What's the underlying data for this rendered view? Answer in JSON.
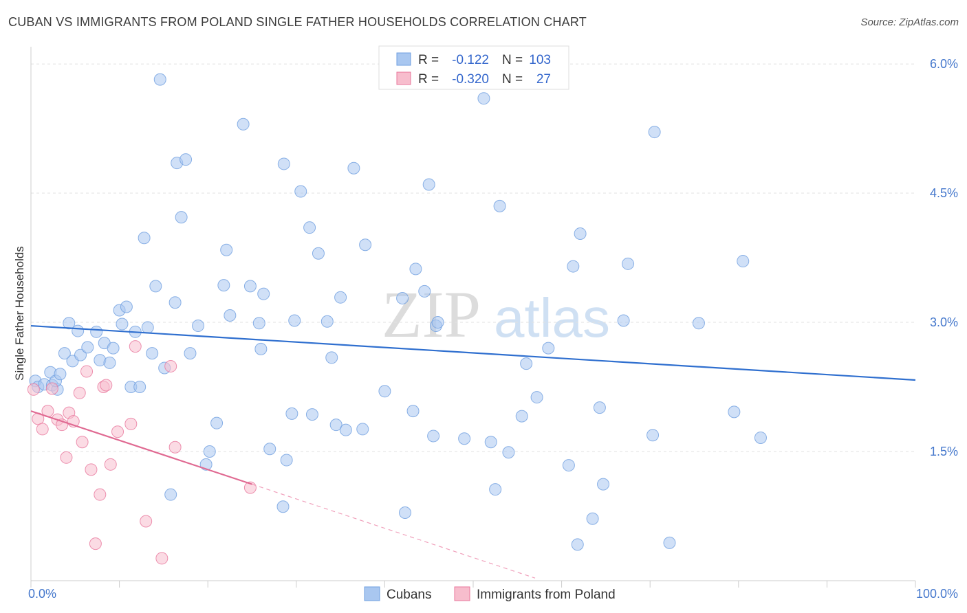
{
  "title": "CUBAN VS IMMIGRANTS FROM POLAND SINGLE FATHER HOUSEHOLDS CORRELATION CHART",
  "source": "Source: ZipAtlas.com",
  "watermark": {
    "zip": "ZIP",
    "atlas": "atlas"
  },
  "chart_data": {
    "type": "scatter",
    "ylabel": "Single Father Households",
    "xlim": [
      0,
      100
    ],
    "ylim": [
      0,
      6.2
    ],
    "x_tick_labels": [
      {
        "value": 0,
        "label": "0.0%"
      },
      {
        "value": 100,
        "label": "100.0%"
      }
    ],
    "y_ticks": [
      {
        "value": 1.5,
        "label": "1.5%"
      },
      {
        "value": 3.0,
        "label": "3.0%"
      },
      {
        "value": 4.5,
        "label": "4.5%"
      },
      {
        "value": 6.0,
        "label": "6.0%"
      }
    ],
    "grid": "horizontal dashed",
    "legend_top": [
      {
        "r_label": "R =",
        "r": "-0.122",
        "n_label": "N =",
        "n": "103",
        "color": "#6f9fe0"
      },
      {
        "r_label": "R =",
        "r": "-0.320",
        "n_label": "N =",
        "n": "27",
        "color": "#f09bb5"
      }
    ],
    "series": [
      {
        "name": "Cubans",
        "color": "#6f9fe0",
        "fill": "#a9c7f0",
        "trend": {
          "x0": 0,
          "y0": 2.96,
          "x1": 100,
          "y1": 2.33
        },
        "points": [
          [
            0.5,
            2.32
          ],
          [
            0.8,
            2.25
          ],
          [
            1.5,
            2.28
          ],
          [
            2.2,
            2.42
          ],
          [
            2.4,
            2.27
          ],
          [
            3.0,
            2.22
          ],
          [
            2.8,
            2.32
          ],
          [
            3.3,
            2.4
          ],
          [
            3.8,
            2.64
          ],
          [
            4.3,
            2.99
          ],
          [
            4.7,
            2.55
          ],
          [
            5.3,
            2.9
          ],
          [
            5.6,
            2.62
          ],
          [
            6.4,
            2.71
          ],
          [
            7.4,
            2.89
          ],
          [
            7.8,
            2.56
          ],
          [
            8.3,
            2.76
          ],
          [
            8.9,
            2.53
          ],
          [
            9.3,
            2.7
          ],
          [
            10.0,
            3.14
          ],
          [
            10.3,
            2.98
          ],
          [
            10.8,
            3.18
          ],
          [
            11.3,
            2.25
          ],
          [
            11.8,
            2.89
          ],
          [
            12.3,
            2.25
          ],
          [
            12.8,
            3.98
          ],
          [
            13.2,
            2.94
          ],
          [
            13.7,
            2.64
          ],
          [
            14.1,
            3.42
          ],
          [
            14.6,
            5.82
          ],
          [
            15.1,
            2.47
          ],
          [
            15.8,
            1.0
          ],
          [
            16.3,
            3.23
          ],
          [
            16.5,
            4.85
          ],
          [
            17.0,
            4.22
          ],
          [
            17.5,
            4.89
          ],
          [
            18.0,
            2.64
          ],
          [
            18.9,
            2.96
          ],
          [
            19.8,
            1.35
          ],
          [
            20.2,
            1.5
          ],
          [
            21.0,
            1.83
          ],
          [
            21.8,
            3.43
          ],
          [
            22.1,
            3.84
          ],
          [
            22.5,
            3.08
          ],
          [
            24.0,
            5.3
          ],
          [
            24.8,
            3.42
          ],
          [
            25.8,
            2.99
          ],
          [
            26.3,
            3.33
          ],
          [
            26.0,
            2.69
          ],
          [
            27.0,
            1.53
          ],
          [
            28.5,
            0.86
          ],
          [
            28.6,
            4.84
          ],
          [
            28.9,
            1.4
          ],
          [
            29.5,
            1.94
          ],
          [
            29.8,
            3.02
          ],
          [
            30.5,
            4.52
          ],
          [
            31.5,
            4.1
          ],
          [
            31.8,
            1.93
          ],
          [
            32.5,
            3.8
          ],
          [
            33.5,
            3.01
          ],
          [
            34.0,
            2.59
          ],
          [
            34.5,
            1.81
          ],
          [
            35.0,
            3.29
          ],
          [
            35.6,
            1.75
          ],
          [
            36.5,
            4.79
          ],
          [
            37.5,
            1.76
          ],
          [
            37.8,
            3.9
          ],
          [
            40.0,
            2.2
          ],
          [
            42.0,
            3.28
          ],
          [
            42.3,
            0.79
          ],
          [
            43.2,
            1.97
          ],
          [
            43.5,
            3.62
          ],
          [
            44.5,
            3.36
          ],
          [
            45.0,
            4.6
          ],
          [
            45.5,
            1.68
          ],
          [
            45.8,
            2.96
          ],
          [
            46.0,
            3.0
          ],
          [
            49.0,
            1.65
          ],
          [
            51.2,
            5.6
          ],
          [
            52.0,
            1.61
          ],
          [
            52.5,
            1.06
          ],
          [
            53.0,
            4.35
          ],
          [
            54.0,
            1.49
          ],
          [
            55.5,
            1.91
          ],
          [
            56.0,
            2.52
          ],
          [
            57.2,
            2.13
          ],
          [
            58.5,
            2.7
          ],
          [
            60.8,
            1.34
          ],
          [
            61.3,
            3.65
          ],
          [
            61.8,
            0.42
          ],
          [
            62.1,
            4.03
          ],
          [
            63.5,
            0.72
          ],
          [
            64.3,
            2.01
          ],
          [
            64.7,
            1.12
          ],
          [
            67.0,
            3.02
          ],
          [
            67.5,
            3.68
          ],
          [
            70.3,
            1.69
          ],
          [
            70.5,
            5.21
          ],
          [
            72.2,
            0.44
          ],
          [
            75.5,
            2.99
          ],
          [
            79.5,
            1.96
          ],
          [
            80.5,
            3.71
          ],
          [
            82.5,
            1.66
          ]
        ]
      },
      {
        "name": "Immigrants from Poland",
        "color": "#e8779c",
        "fill": "#f7bdcd",
        "trend": {
          "x0": 0,
          "y0": 1.97,
          "x1": 25,
          "y1": 1.12
        },
        "trend_ext": {
          "x0": 25,
          "y0": 1.12,
          "x1": 57,
          "y1": 0.03
        },
        "points": [
          [
            0.3,
            2.22
          ],
          [
            0.8,
            1.88
          ],
          [
            1.3,
            1.76
          ],
          [
            1.9,
            1.97
          ],
          [
            2.4,
            2.23
          ],
          [
            3.0,
            1.87
          ],
          [
            3.5,
            1.81
          ],
          [
            4.0,
            1.43
          ],
          [
            4.3,
            1.95
          ],
          [
            4.8,
            1.85
          ],
          [
            5.5,
            2.18
          ],
          [
            5.8,
            1.61
          ],
          [
            6.3,
            2.43
          ],
          [
            6.8,
            1.29
          ],
          [
            7.3,
            0.43
          ],
          [
            7.8,
            1.0
          ],
          [
            8.2,
            2.25
          ],
          [
            8.5,
            2.27
          ],
          [
            9.0,
            1.35
          ],
          [
            9.8,
            1.73
          ],
          [
            11.3,
            1.82
          ],
          [
            11.8,
            2.72
          ],
          [
            13.0,
            0.69
          ],
          [
            14.8,
            0.26
          ],
          [
            15.8,
            2.49
          ],
          [
            16.3,
            1.55
          ],
          [
            24.8,
            1.08
          ]
        ]
      }
    ]
  }
}
